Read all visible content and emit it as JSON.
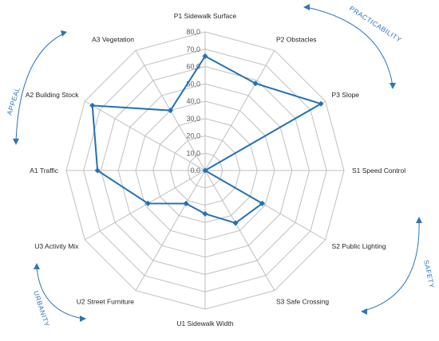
{
  "chart_data": {
    "type": "radar",
    "categories": [
      "P1 Sidewalk Surface",
      "P2 Obstacles",
      "P3 Slope",
      "S1 Speed Control",
      "S2 Public  Lighting",
      "S3 Safe Crossing",
      "U1 Sidewalk Width",
      "U2 Street Furniture",
      "U3 Activity Mix",
      "A1 Traffic",
      "A2 Building Stock",
      "A3 Vegetation"
    ],
    "series": [
      {
        "values": [
          66,
          58,
          77,
          0,
          38,
          35,
          25,
          22,
          38,
          62,
          75,
          40
        ]
      }
    ],
    "rlim": [
      0,
      80
    ],
    "ticks": [
      "0,0",
      "10,0",
      "20,0",
      "30,0",
      "40,0",
      "50,0",
      "60,0",
      "70,0",
      "80,0"
    ],
    "grid": true,
    "colors": {
      "series": "#2371b5",
      "grid": "#bfbfbf",
      "group_label": "#2e75b6"
    },
    "groups": [
      "PRACTICABILITY",
      "SAFETY",
      "URBANITY",
      "APPEAL"
    ]
  }
}
